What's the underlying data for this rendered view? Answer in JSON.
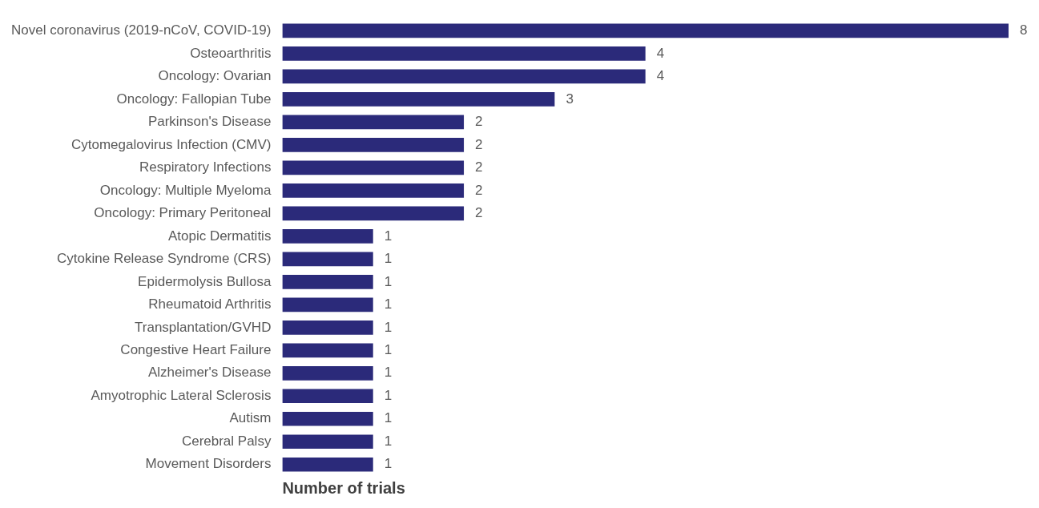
{
  "chart_data": {
    "type": "bar",
    "orientation": "horizontal",
    "xlabel": "Number of trials",
    "categories": [
      "Novel coronavirus (2019-nCoV, COVID-19)",
      "Osteoarthritis",
      "Oncology: Ovarian",
      "Oncology: Fallopian Tube",
      "Parkinson's Disease",
      "Cytomegalovirus Infection (CMV)",
      "Respiratory Infections",
      "Oncology: Multiple Myeloma",
      "Oncology: Primary Peritoneal",
      "Atopic Dermatitis",
      "Cytokine Release Syndrome (CRS)",
      "Epidermolysis Bullosa",
      "Rheumatoid Arthritis",
      "Transplantation/GVHD",
      "Congestive Heart Failure",
      "Alzheimer's Disease",
      "Amyotrophic Lateral Sclerosis",
      "Autism",
      "Cerebral Palsy",
      "Movement Disorders"
    ],
    "values": [
      8,
      4,
      4,
      3,
      2,
      2,
      2,
      2,
      2,
      1,
      1,
      1,
      1,
      1,
      1,
      1,
      1,
      1,
      1,
      1
    ],
    "color": "#2b2a7a",
    "xlim": [
      0,
      8
    ],
    "data_labels": true,
    "grid": false,
    "legend": false,
    "tick_labels": "y"
  }
}
